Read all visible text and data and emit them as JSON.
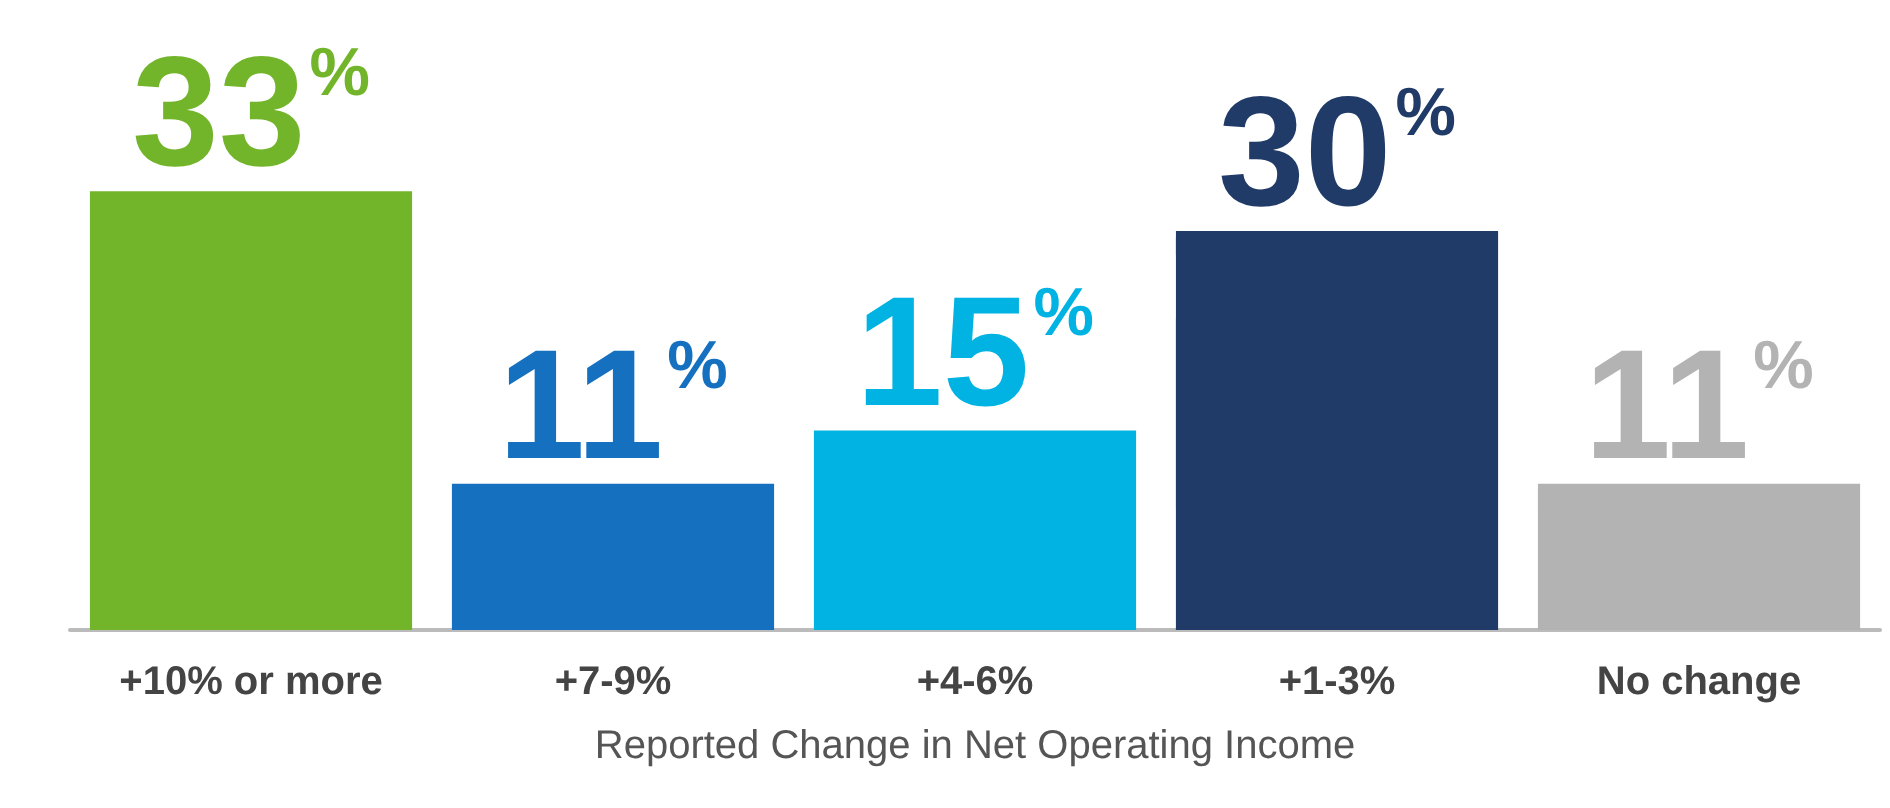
{
  "chart_data": {
    "type": "bar",
    "xlabel": "Reported Change in Net Operating Income",
    "categories": [
      "+10% or more",
      "+7-9%",
      "+4-6%",
      "+1-3%",
      "No change"
    ],
    "values": [
      33,
      11,
      15,
      30,
      11
    ],
    "colors": [
      "#72b52b",
      "#1570c0",
      "#00b3e3",
      "#213b68",
      "#b3b3b3"
    ],
    "value_labels": [
      "33%",
      "11%",
      "15%",
      "30%",
      "11%"
    ]
  }
}
